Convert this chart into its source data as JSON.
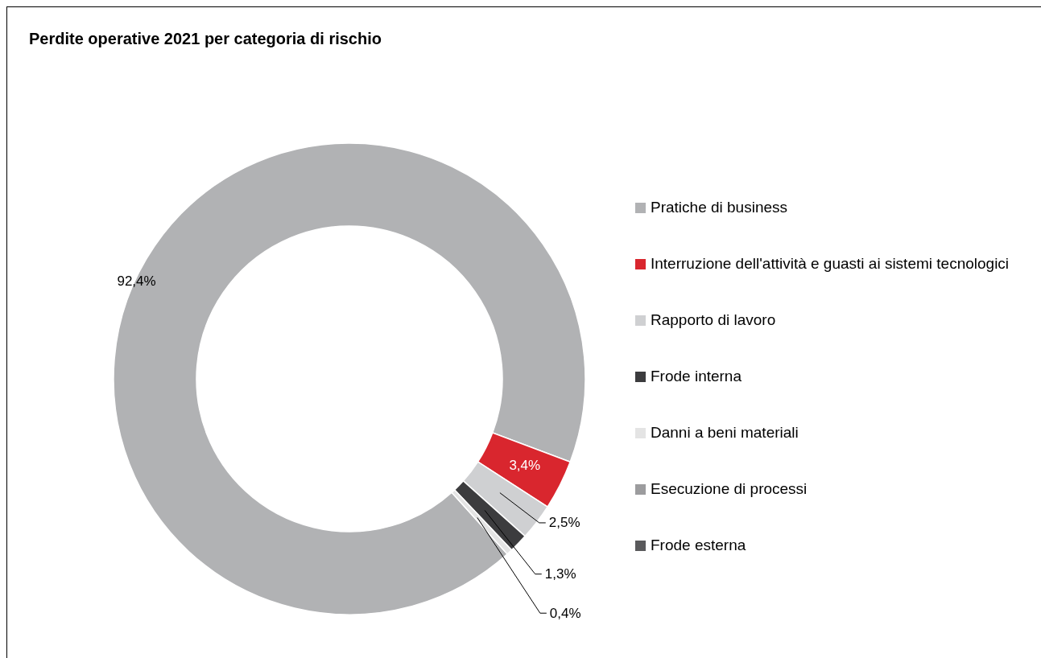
{
  "chart_data": {
    "type": "donut",
    "title": "Perdite operative 2021 per categoria di rischio",
    "categories": [
      "Pratiche di business",
      "Interruzione dell'attività e guasti ai sistemi tecnologici",
      "Rapporto di lavoro",
      "Frode interna",
      "Danni a beni materiali",
      "Esecuzione di processi",
      "Frode esterna"
    ],
    "values": [
      92.4,
      3.4,
      2.5,
      1.3,
      0.4,
      0,
      0
    ],
    "colors": [
      "#b1b2b4",
      "#d9262e",
      "#cfd0d2",
      "#3c3c3e",
      "#e4e4e4",
      "#9c9c9e",
      "#5a5a5c"
    ],
    "value_labels": [
      "92,4%",
      "3,4%",
      "2,5%",
      "1,3%",
      "0,4%",
      null,
      null
    ],
    "legend": "right"
  }
}
